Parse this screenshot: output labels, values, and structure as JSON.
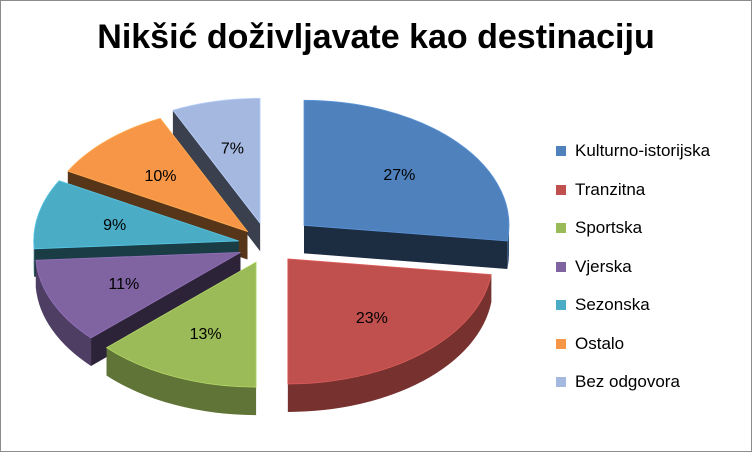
{
  "chart_data": {
    "type": "pie",
    "title": "Nikšić doživljavate kao destinaciju",
    "categories": [
      "Kulturno-istorijska",
      "Tranzitna",
      "Sportska",
      "Vjerska",
      "Sezonska",
      "Ostalo",
      "Bez odgovora"
    ],
    "values": [
      27,
      23,
      13,
      11,
      9,
      10,
      7
    ],
    "labels": [
      "27%",
      "23%",
      "13%",
      "11%",
      "9%",
      "10%",
      "7%"
    ],
    "colors": [
      "#4f81bd",
      "#c0504d",
      "#9bbb59",
      "#8064a2",
      "#4bacc6",
      "#f79646",
      "#a5b8e0"
    ],
    "legend_position": "right",
    "style": "3d-exploded"
  }
}
